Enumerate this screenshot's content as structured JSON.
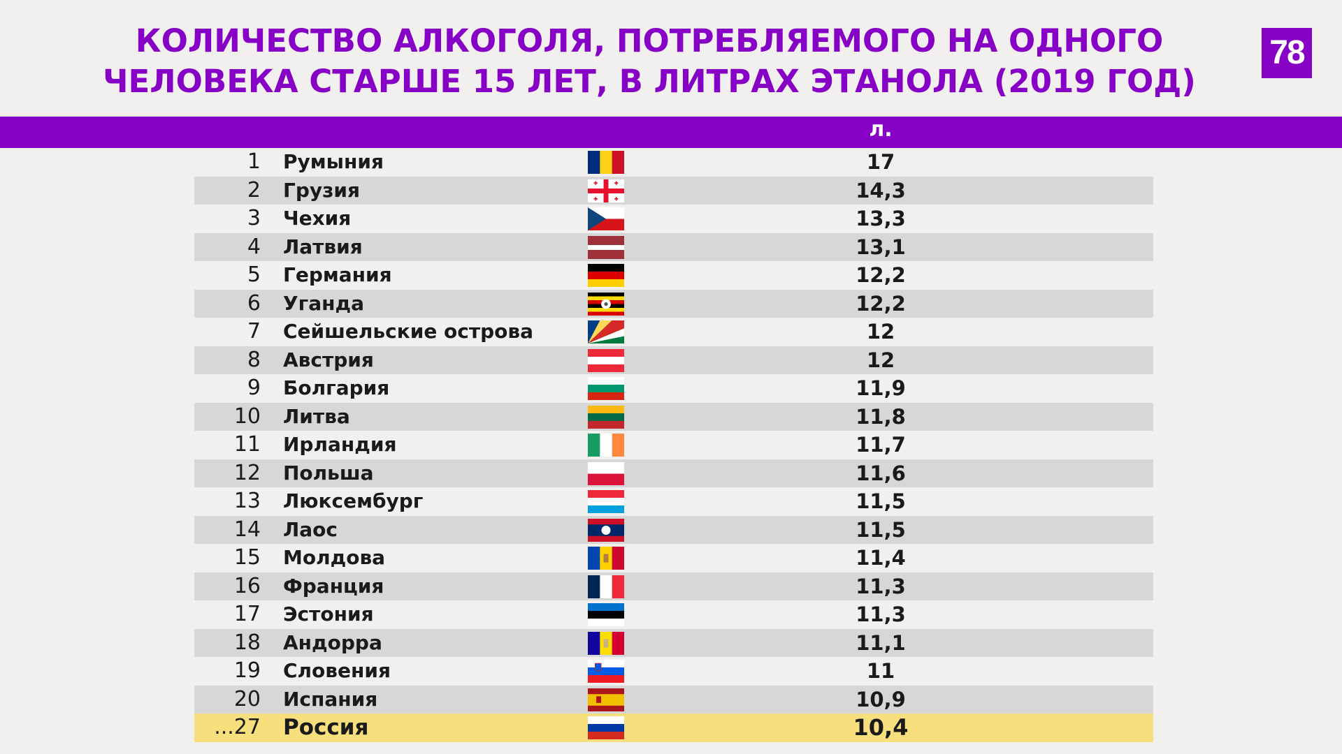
{
  "header": {
    "title_line1": "Количество алкоголя, потребляемого на одного",
    "title_line2": "человека старше 15 лет, в литрах этанола (2019 год)",
    "logo": "78"
  },
  "table": {
    "unit_label": "л."
  },
  "chart_data": {
    "type": "table",
    "title": "Количество алкоголя, потребляемого на одного человека старше 15 лет, в литрах этанола (2019 год)",
    "columns": [
      "",
      "",
      "",
      "л."
    ],
    "rows": [
      {
        "rank": "1",
        "country": "Румыния",
        "value": "17",
        "flag": "romania"
      },
      {
        "rank": "2",
        "country": "Грузия",
        "value": "14,3",
        "flag": "georgia"
      },
      {
        "rank": "3",
        "country": "Чехия",
        "value": "13,3",
        "flag": "czechia"
      },
      {
        "rank": "4",
        "country": "Латвия",
        "value": "13,1",
        "flag": "latvia"
      },
      {
        "rank": "5",
        "country": "Германия",
        "value": "12,2",
        "flag": "germany"
      },
      {
        "rank": "6",
        "country": "Уганда",
        "value": "12,2",
        "flag": "uganda"
      },
      {
        "rank": "7",
        "country": "Сейшельские острова",
        "value": "12",
        "flag": "seychelles"
      },
      {
        "rank": "8",
        "country": "Австрия",
        "value": "12",
        "flag": "austria"
      },
      {
        "rank": "9",
        "country": "Болгария",
        "value": "11,9",
        "flag": "bulgaria"
      },
      {
        "rank": "10",
        "country": "Литва",
        "value": "11,8",
        "flag": "lithuania"
      },
      {
        "rank": "11",
        "country": "Ирландия",
        "value": "11,7",
        "flag": "ireland"
      },
      {
        "rank": "12",
        "country": "Польша",
        "value": "11,6",
        "flag": "poland"
      },
      {
        "rank": "13",
        "country": "Люксембург",
        "value": "11,5",
        "flag": "luxembourg"
      },
      {
        "rank": "14",
        "country": "Лаос",
        "value": "11,5",
        "flag": "laos"
      },
      {
        "rank": "15",
        "country": "Молдова",
        "value": "11,4",
        "flag": "moldova"
      },
      {
        "rank": "16",
        "country": "Франция",
        "value": "11,3",
        "flag": "france"
      },
      {
        "rank": "17",
        "country": "Эстония",
        "value": "11,3",
        "flag": "estonia"
      },
      {
        "rank": "18",
        "country": "Андорра",
        "value": "11,1",
        "flag": "andorra"
      },
      {
        "rank": "19",
        "country": "Словения",
        "value": "11",
        "flag": "slovenia"
      },
      {
        "rank": "20",
        "country": "Испания",
        "value": "10,9",
        "flag": "spain"
      },
      {
        "rank": "...27",
        "country": "Россия",
        "value": "10,4",
        "flag": "russia",
        "highlight": true
      }
    ]
  },
  "colors": {
    "accent": "#8600c6",
    "row_alt": "#d7d7d7",
    "highlight": "#f6df7c"
  }
}
